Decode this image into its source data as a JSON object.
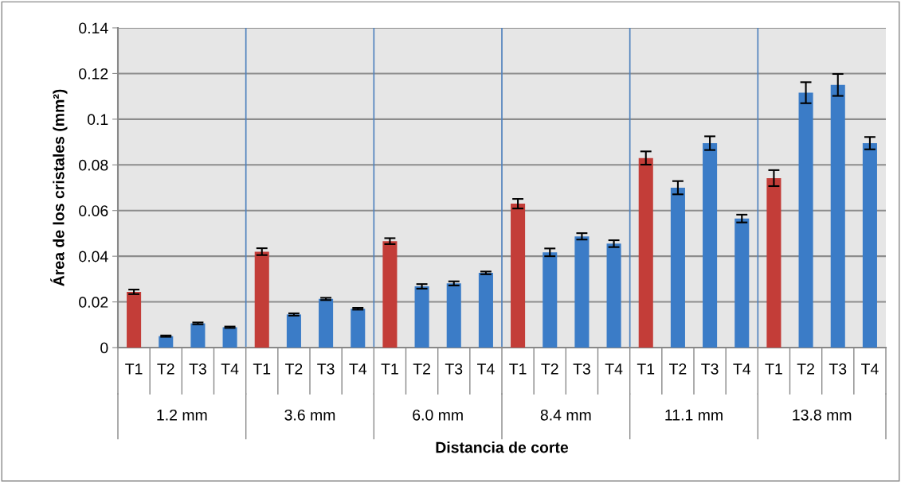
{
  "chart_data": {
    "type": "bar",
    "xlabel": "Distancia de corte",
    "ylabel": "Área de los cristales (mm²)",
    "categories": [
      "T1",
      "T2",
      "T3",
      "T4",
      "T1",
      "T2",
      "T3",
      "T4",
      "T1",
      "T2",
      "T3",
      "T4",
      "T1",
      "T2",
      "T3",
      "T4",
      "T1",
      "T2",
      "T3",
      "T4",
      "T1",
      "T2",
      "T3",
      "T4"
    ],
    "values": [
      0.0244,
      0.005,
      0.0106,
      0.0089,
      0.042,
      0.0145,
      0.0213,
      0.017,
      0.0466,
      0.0268,
      0.0281,
      0.0327,
      0.063,
      0.0417,
      0.0487,
      0.0455,
      0.083,
      0.07,
      0.0895,
      0.0565,
      0.0742,
      0.1116,
      0.115,
      0.0895
    ],
    "errors": [
      0.001,
      0.0003,
      0.0004,
      0.0003,
      0.0015,
      0.0005,
      0.0005,
      0.0004,
      0.0013,
      0.001,
      0.0009,
      0.0006,
      0.0021,
      0.0017,
      0.0014,
      0.0015,
      0.0029,
      0.0029,
      0.003,
      0.0017,
      0.0035,
      0.0046,
      0.0048,
      0.0027
    ],
    "colors": [
      "#c33d38",
      "#3b7cc7",
      "#3b7cc7",
      "#3b7cc7",
      "#c33d38",
      "#3b7cc7",
      "#3b7cc7",
      "#3b7cc7",
      "#c33d38",
      "#3b7cc7",
      "#3b7cc7",
      "#3b7cc7",
      "#c33d38",
      "#3b7cc7",
      "#3b7cc7",
      "#3b7cc7",
      "#c33d38",
      "#3b7cc7",
      "#3b7cc7",
      "#3b7cc7",
      "#c33d38",
      "#3b7cc7",
      "#3b7cc7",
      "#3b7cc7"
    ],
    "annotations": [
      "1.2 mm",
      "3.6 mm",
      "6.0 mm",
      "8.4 mm",
      "11.1 mm",
      "13.8 mm"
    ],
    "ylim": [
      0,
      0.14
    ],
    "yticks": [
      0,
      0.02,
      0.04,
      0.06,
      0.08,
      0.1,
      0.12,
      0.14
    ],
    "grid": "y",
    "legend": false
  }
}
